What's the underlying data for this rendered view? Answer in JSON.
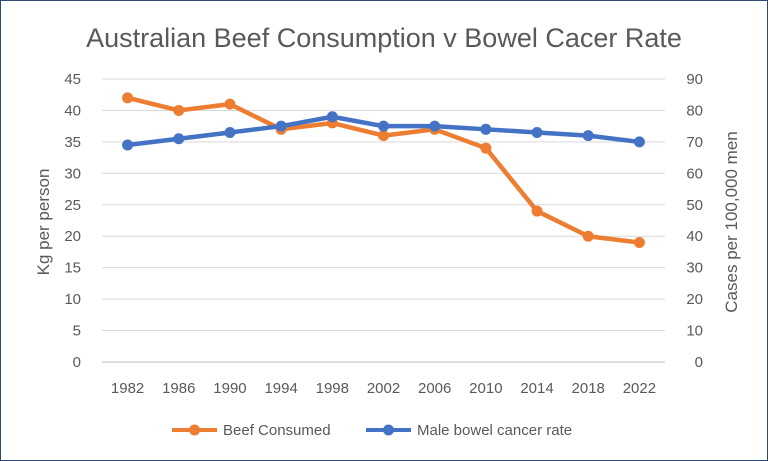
{
  "chart_data": {
    "type": "line",
    "title": "Australian Beef Consumption v Bowel Cacer Rate",
    "x": [
      "1982",
      "1986",
      "1990",
      "1994",
      "1998",
      "2002",
      "2006",
      "2010",
      "2014",
      "2018",
      "2022"
    ],
    "y_left": {
      "label": "Kg per person",
      "ticks": [
        0,
        5,
        10,
        15,
        20,
        25,
        30,
        35,
        40,
        45
      ],
      "lim": [
        0,
        45
      ]
    },
    "y_right": {
      "label": "Cases per 100,000 men",
      "ticks": [
        0,
        10,
        20,
        30,
        40,
        50,
        60,
        70,
        80,
        90
      ],
      "lim": [
        0,
        90
      ]
    },
    "grid": true,
    "legend_position": "bottom",
    "series": [
      {
        "name": "Beef Consumed",
        "axis": "left",
        "color": "#ed7d31",
        "values": [
          42,
          40,
          41,
          37,
          38,
          36,
          37,
          34,
          24,
          20,
          19
        ]
      },
      {
        "name": "Male bowel cancer rate",
        "axis": "right",
        "color": "#4472c4",
        "values": [
          69,
          71,
          73,
          75,
          78,
          75,
          75,
          74,
          73,
          72,
          70
        ]
      }
    ]
  }
}
